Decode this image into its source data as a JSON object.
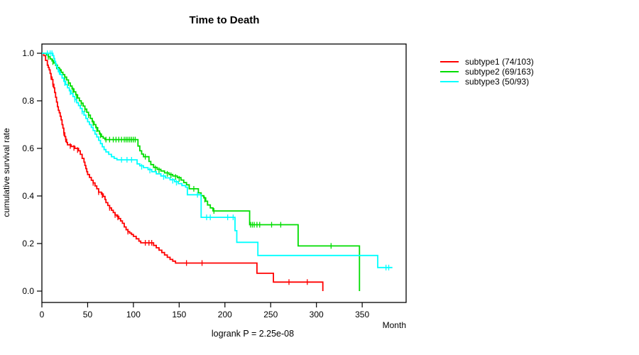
{
  "title": "Time to Death",
  "footer": "logrank P = 2.25e-08",
  "axes": {
    "xlabel": "Month",
    "ylabel": "cumulative survival rate",
    "x_ticks": [
      0,
      50,
      100,
      150,
      200,
      250,
      300,
      350
    ],
    "x_tick_labels": [
      "0",
      "50",
      "100",
      "150",
      "200",
      "250",
      "300",
      "350"
    ],
    "y_ticks": [
      0.0,
      0.2,
      0.4,
      0.6,
      0.8,
      1.0
    ],
    "y_tick_labels": [
      "0.0",
      "0.2",
      "0.4",
      "0.6",
      "0.8",
      "1.0"
    ],
    "xlim": [
      0,
      398
    ],
    "ylim": [
      0.0,
      1.0
    ]
  },
  "legend": {
    "items": [
      {
        "label": "subtype1 (74/103)",
        "color": "#ff0000"
      },
      {
        "label": "subtype2 (69/163)",
        "color": "#00dd00"
      },
      {
        "label": "subtype3 (50/93)",
        "color": "#00ffff"
      }
    ]
  },
  "chart_data": {
    "type": "line",
    "subtype": "kaplan-meier-step",
    "title": "Time to Death",
    "xlabel": "Month",
    "ylabel": "cumulative survival rate",
    "xlim": [
      0,
      398
    ],
    "ylim": [
      0.0,
      1.0
    ],
    "annotation": "logrank P = 2.25e-08",
    "legend_position": "right-outside",
    "grid": false,
    "series": [
      {
        "name": "subtype1 (74/103)",
        "color": "#ff0000",
        "events_total": "74/103",
        "points": [
          [
            0,
            1
          ],
          [
            2,
            0.99
          ],
          [
            4,
            0.97
          ],
          [
            6,
            0.95
          ],
          [
            7,
            0.94
          ],
          [
            8,
            0.93
          ],
          [
            9,
            0.915
          ],
          [
            10,
            0.9
          ],
          [
            11,
            0.89
          ],
          [
            12,
            0.87
          ],
          [
            13,
            0.855
          ],
          [
            14,
            0.835
          ],
          [
            15,
            0.815
          ],
          [
            16,
            0.795
          ],
          [
            17,
            0.775
          ],
          [
            18,
            0.76
          ],
          [
            19,
            0.75
          ],
          [
            20,
            0.735
          ],
          [
            21,
            0.72
          ],
          [
            22,
            0.7
          ],
          [
            23,
            0.685
          ],
          [
            24,
            0.665
          ],
          [
            25,
            0.65
          ],
          [
            26,
            0.638
          ],
          [
            27,
            0.625
          ],
          [
            28,
            0.615
          ],
          [
            32,
            0.608
          ],
          [
            36,
            0.6
          ],
          [
            40,
            0.59
          ],
          [
            42,
            0.575
          ],
          [
            44,
            0.558
          ],
          [
            46,
            0.542
          ],
          [
            47,
            0.528
          ],
          [
            48,
            0.515
          ],
          [
            49,
            0.502
          ],
          [
            50,
            0.49
          ],
          [
            52,
            0.478
          ],
          [
            54,
            0.466
          ],
          [
            56,
            0.455
          ],
          [
            58,
            0.442
          ],
          [
            60,
            0.43
          ],
          [
            62,
            0.416
          ],
          [
            65,
            0.408
          ],
          [
            67,
            0.398
          ],
          [
            69,
            0.385
          ],
          [
            70,
            0.372
          ],
          [
            72,
            0.36
          ],
          [
            74,
            0.35
          ],
          [
            76,
            0.34
          ],
          [
            78,
            0.33
          ],
          [
            80,
            0.32
          ],
          [
            82,
            0.314
          ],
          [
            84,
            0.305
          ],
          [
            86,
            0.295
          ],
          [
            88,
            0.285
          ],
          [
            90,
            0.27
          ],
          [
            92,
            0.258
          ],
          [
            94,
            0.25
          ],
          [
            96,
            0.244
          ],
          [
            98,
            0.238
          ],
          [
            100,
            0.23
          ],
          [
            103,
            0.22
          ],
          [
            106,
            0.21
          ],
          [
            108,
            0.203
          ],
          [
            122,
            0.192
          ],
          [
            125,
            0.182
          ],
          [
            128,
            0.172
          ],
          [
            131,
            0.162
          ],
          [
            134,
            0.152
          ],
          [
            137,
            0.142
          ],
          [
            140,
            0.133
          ],
          [
            143,
            0.126
          ],
          [
            146,
            0.118
          ],
          [
            235,
            0.075
          ],
          [
            253,
            0.038
          ],
          [
            307,
            0
          ]
        ],
        "censors": [
          [
            10,
            0.9
          ],
          [
            12,
            0.87
          ],
          [
            24,
            0.665
          ],
          [
            26,
            0.638
          ],
          [
            31,
            0.61
          ],
          [
            35,
            0.602
          ],
          [
            39,
            0.593
          ],
          [
            56,
            0.455
          ],
          [
            62,
            0.416
          ],
          [
            66,
            0.403
          ],
          [
            74,
            0.35
          ],
          [
            80,
            0.32
          ],
          [
            83,
            0.31
          ],
          [
            94,
            0.25
          ],
          [
            113,
            0.203
          ],
          [
            117,
            0.203
          ],
          [
            120,
            0.203
          ],
          [
            158,
            0.118
          ],
          [
            175,
            0.118
          ],
          [
            270,
            0.038
          ],
          [
            290,
            0.038
          ]
        ]
      },
      {
        "name": "subtype2 (69/163)",
        "color": "#00dd00",
        "events_total": "69/163",
        "points": [
          [
            0,
            1
          ],
          [
            5,
            0.993
          ],
          [
            7,
            0.985
          ],
          [
            9,
            0.976
          ],
          [
            11,
            0.968
          ],
          [
            13,
            0.959
          ],
          [
            15,
            0.95
          ],
          [
            17,
            0.94
          ],
          [
            19,
            0.93
          ],
          [
            21,
            0.92
          ],
          [
            23,
            0.91
          ],
          [
            25,
            0.9
          ],
          [
            27,
            0.888
          ],
          [
            29,
            0.875
          ],
          [
            31,
            0.862
          ],
          [
            33,
            0.85
          ],
          [
            35,
            0.838
          ],
          [
            37,
            0.825
          ],
          [
            39,
            0.812
          ],
          [
            41,
            0.8
          ],
          [
            43,
            0.79
          ],
          [
            45,
            0.778
          ],
          [
            47,
            0.765
          ],
          [
            49,
            0.752
          ],
          [
            51,
            0.74
          ],
          [
            53,
            0.726
          ],
          [
            55,
            0.712
          ],
          [
            57,
            0.7
          ],
          [
            59,
            0.687
          ],
          [
            61,
            0.673
          ],
          [
            63,
            0.66
          ],
          [
            65,
            0.65
          ],
          [
            67,
            0.643
          ],
          [
            69,
            0.637
          ],
          [
            105,
            0.61
          ],
          [
            107,
            0.59
          ],
          [
            109,
            0.576
          ],
          [
            111,
            0.565
          ],
          [
            117,
            0.545
          ],
          [
            119,
            0.532
          ],
          [
            122,
            0.52
          ],
          [
            126,
            0.512
          ],
          [
            130,
            0.505
          ],
          [
            134,
            0.497
          ],
          [
            139,
            0.49
          ],
          [
            143,
            0.484
          ],
          [
            148,
            0.477
          ],
          [
            152,
            0.467
          ],
          [
            155,
            0.456
          ],
          [
            158,
            0.447
          ],
          [
            161,
            0.43
          ],
          [
            171,
            0.413
          ],
          [
            174,
            0.401
          ],
          [
            177,
            0.392
          ],
          [
            179,
            0.378
          ],
          [
            181,
            0.362
          ],
          [
            184,
            0.35
          ],
          [
            187,
            0.337
          ],
          [
            227,
            0.279
          ],
          [
            280,
            0.19
          ],
          [
            347,
            0
          ]
        ],
        "censors": [
          [
            7,
            0.985
          ],
          [
            12,
            0.963
          ],
          [
            16,
            0.945
          ],
          [
            20,
            0.925
          ],
          [
            25,
            0.9
          ],
          [
            29,
            0.875
          ],
          [
            34,
            0.844
          ],
          [
            38,
            0.818
          ],
          [
            43,
            0.79
          ],
          [
            47,
            0.765
          ],
          [
            51,
            0.74
          ],
          [
            56,
            0.706
          ],
          [
            60,
            0.68
          ],
          [
            64,
            0.655
          ],
          [
            70,
            0.637
          ],
          [
            74,
            0.637
          ],
          [
            78,
            0.637
          ],
          [
            81,
            0.637
          ],
          [
            84,
            0.637
          ],
          [
            87,
            0.637
          ],
          [
            90,
            0.637
          ],
          [
            92,
            0.637
          ],
          [
            94,
            0.637
          ],
          [
            96,
            0.637
          ],
          [
            98,
            0.637
          ],
          [
            100,
            0.637
          ],
          [
            102,
            0.637
          ],
          [
            113,
            0.565
          ],
          [
            124,
            0.516
          ],
          [
            128,
            0.508
          ],
          [
            137,
            0.493
          ],
          [
            141,
            0.487
          ],
          [
            146,
            0.48
          ],
          [
            150,
            0.472
          ],
          [
            166,
            0.43
          ],
          [
            178,
            0.385
          ],
          [
            188,
            0.337
          ],
          [
            228,
            0.279
          ],
          [
            230,
            0.279
          ],
          [
            232,
            0.279
          ],
          [
            235,
            0.279
          ],
          [
            238,
            0.279
          ],
          [
            251,
            0.279
          ],
          [
            261,
            0.279
          ],
          [
            316,
            0.19
          ]
        ]
      },
      {
        "name": "subtype3 (50/93)",
        "color": "#00ffff",
        "events_total": "50/93",
        "points": [
          [
            0,
            1
          ],
          [
            12,
            0.99
          ],
          [
            13,
            0.978
          ],
          [
            14,
            0.966
          ],
          [
            15,
            0.955
          ],
          [
            16,
            0.944
          ],
          [
            17,
            0.933
          ],
          [
            18,
            0.922
          ],
          [
            20,
            0.91
          ],
          [
            22,
            0.896
          ],
          [
            24,
            0.882
          ],
          [
            26,
            0.868
          ],
          [
            28,
            0.855
          ],
          [
            30,
            0.842
          ],
          [
            32,
            0.83
          ],
          [
            34,
            0.818
          ],
          [
            36,
            0.805
          ],
          [
            38,
            0.792
          ],
          [
            40,
            0.78
          ],
          [
            42,
            0.768
          ],
          [
            44,
            0.755
          ],
          [
            46,
            0.74
          ],
          [
            48,
            0.726
          ],
          [
            50,
            0.712
          ],
          [
            52,
            0.7
          ],
          [
            54,
            0.688
          ],
          [
            56,
            0.675
          ],
          [
            58,
            0.66
          ],
          [
            60,
            0.648
          ],
          [
            62,
            0.634
          ],
          [
            64,
            0.62
          ],
          [
            66,
            0.607
          ],
          [
            68,
            0.595
          ],
          [
            70,
            0.585
          ],
          [
            73,
            0.575
          ],
          [
            76,
            0.565
          ],
          [
            79,
            0.558
          ],
          [
            82,
            0.552
          ],
          [
            104,
            0.535
          ],
          [
            107,
            0.527
          ],
          [
            111,
            0.519
          ],
          [
            116,
            0.511
          ],
          [
            120,
            0.502
          ],
          [
            125,
            0.493
          ],
          [
            130,
            0.484
          ],
          [
            135,
            0.476
          ],
          [
            140,
            0.468
          ],
          [
            145,
            0.46
          ],
          [
            149,
            0.452
          ],
          [
            153,
            0.444
          ],
          [
            157,
            0.437
          ],
          [
            159,
            0.405
          ],
          [
            174,
            0.31
          ],
          [
            211,
            0.254
          ],
          [
            213,
            0.205
          ],
          [
            236,
            0.15
          ],
          [
            367,
            0.099
          ],
          [
            383,
            0.099
          ]
        ],
        "censors": [
          [
            6,
            1
          ],
          [
            9,
            1
          ],
          [
            11,
            1
          ],
          [
            19,
            0.922
          ],
          [
            25,
            0.875
          ],
          [
            31,
            0.836
          ],
          [
            36,
            0.805
          ],
          [
            44,
            0.755
          ],
          [
            87,
            0.552
          ],
          [
            93,
            0.552
          ],
          [
            98,
            0.552
          ],
          [
            109,
            0.523
          ],
          [
            118,
            0.507
          ],
          [
            133,
            0.48
          ],
          [
            143,
            0.464
          ],
          [
            147,
            0.456
          ],
          [
            170,
            0.405
          ],
          [
            180,
            0.31
          ],
          [
            184,
            0.31
          ],
          [
            203,
            0.31
          ],
          [
            209,
            0.31
          ],
          [
            376,
            0.099
          ],
          [
            379,
            0.099
          ]
        ]
      }
    ]
  }
}
